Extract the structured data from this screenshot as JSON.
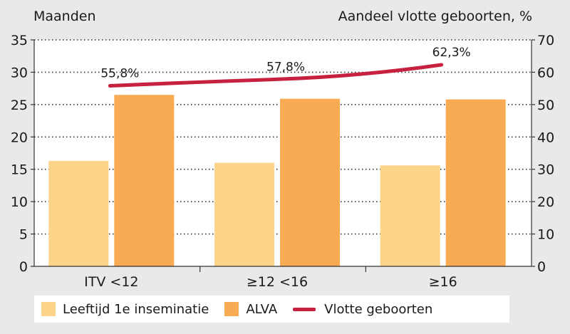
{
  "chart_data": {
    "type": "bar",
    "left_axis_title": "Maanden",
    "right_axis_title": "Aandeel vlotte geboorten, %",
    "categories": [
      "ITV <12",
      "≥12 <16",
      "≥16"
    ],
    "ylim": [
      0,
      35
    ],
    "yticks": [
      "0",
      "5",
      "10",
      "15",
      "20",
      "25",
      "30",
      "35"
    ],
    "y2lim": [
      0,
      70
    ],
    "y2ticks": [
      "0",
      "10",
      "20",
      "30",
      "40",
      "50",
      "60",
      "70"
    ],
    "grid": "dotted-horizontal",
    "legend_position": "bottom",
    "series": [
      {
        "name": "Leeftijd 1e inseminatie",
        "type": "bar",
        "axis": "left",
        "color": "#fdd58a",
        "values": [
          16.3,
          16.0,
          15.6
        ]
      },
      {
        "name": "ALVA",
        "type": "bar",
        "axis": "left",
        "color": "#f8ab53",
        "values": [
          26.5,
          25.9,
          25.8
        ]
      },
      {
        "name": "Vlotte geboorten",
        "type": "line",
        "axis": "right",
        "color": "#c6213f",
        "values": [
          55.8,
          57.8,
          62.3
        ],
        "labels": [
          "55,8%",
          "57,8%",
          "62,3%"
        ]
      }
    ]
  }
}
